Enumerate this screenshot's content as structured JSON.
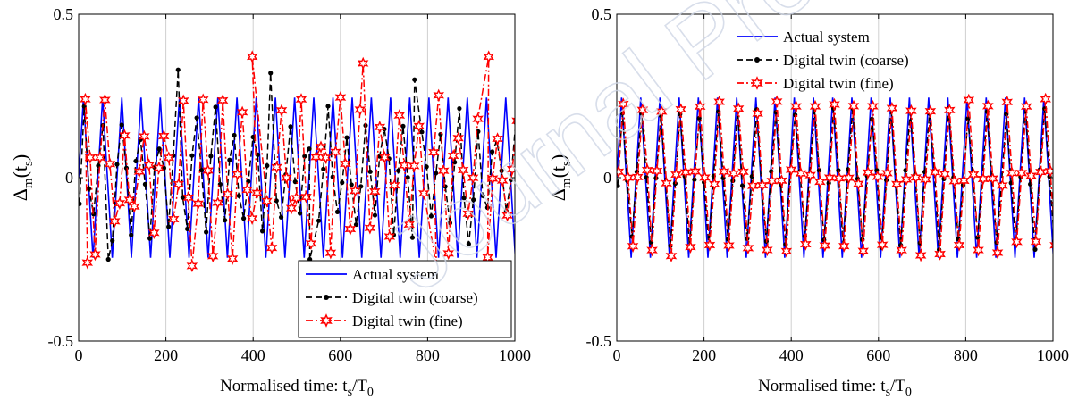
{
  "colors": {
    "actual": "#0000ff",
    "coarse": "#000000",
    "fine": "#ff0000",
    "grid": "#d0d0d0",
    "watermark": "#cfd6e6"
  },
  "watermark_text": "Journal Pre-proof",
  "chart_data": [
    {
      "type": "line",
      "panel": "left",
      "title": "",
      "xlabel": "Normalised time: t_s/T_0",
      "ylabel": "Δ_m(t_s)",
      "xlim": [
        0,
        1000
      ],
      "ylim": [
        -0.5,
        0.5
      ],
      "xticks": [
        0,
        200,
        400,
        600,
        800,
        1000
      ],
      "yticks": [
        -0.5,
        0,
        0.5
      ],
      "ytick_labels": [
        "-0.5",
        "0",
        "0.5"
      ],
      "grid": "x",
      "legend_position": "bottom-right",
      "seed": 7,
      "series": [
        {
          "name": "Actual system",
          "style": "solid",
          "marker": "none",
          "description": "sawtooth",
          "period": 44,
          "amplitude": 0.245
        },
        {
          "name": "Digital twin (coarse)",
          "style": "dashed",
          "marker": "dot",
          "description": "noisy oscillation",
          "period": 43,
          "amplitude": 0.2,
          "peaks": [
            [
              228,
              0.33
            ],
            [
              440,
              0.32
            ],
            [
              770,
              0.3
            ],
            [
              68,
              -0.25
            ],
            [
              530,
              -0.25
            ]
          ]
        },
        {
          "name": "Digital twin (fine)",
          "style": "dashdot",
          "marker": "star",
          "description": "noisy oscillation",
          "period": 45,
          "amplitude": 0.22,
          "peaks": [
            [
              398,
              0.37
            ],
            [
              652,
              0.35
            ],
            [
              940,
              0.37
            ],
            [
              20,
              -0.26
            ],
            [
              260,
              -0.27
            ],
            [
              820,
              -0.27
            ]
          ]
        }
      ]
    },
    {
      "type": "line",
      "panel": "right",
      "title": "",
      "xlabel": "Normalised time: t_s/T_0",
      "ylabel": "Δ_m(t_s)",
      "xlim": [
        0,
        1000
      ],
      "ylim": [
        -0.5,
        0.5
      ],
      "xticks": [
        0,
        200,
        400,
        600,
        800,
        1000
      ],
      "yticks": [
        -0.5,
        0,
        0.5
      ],
      "ytick_labels": [
        "-0.5",
        "0",
        "0.5"
      ],
      "grid": "x",
      "legend_position": "top-left",
      "seed": 11,
      "series": [
        {
          "name": "Actual system",
          "style": "solid",
          "marker": "none",
          "description": "sawtooth",
          "period": 44,
          "amplitude": 0.245
        },
        {
          "name": "Digital twin (coarse)",
          "style": "dashed",
          "marker": "dot",
          "description": "tracking sawtooth",
          "period": 44,
          "amplitude": 0.21
        },
        {
          "name": "Digital twin (fine)",
          "style": "dashdot",
          "marker": "star",
          "description": "tracking sawtooth",
          "period": 44,
          "amplitude": 0.23
        }
      ]
    }
  ]
}
